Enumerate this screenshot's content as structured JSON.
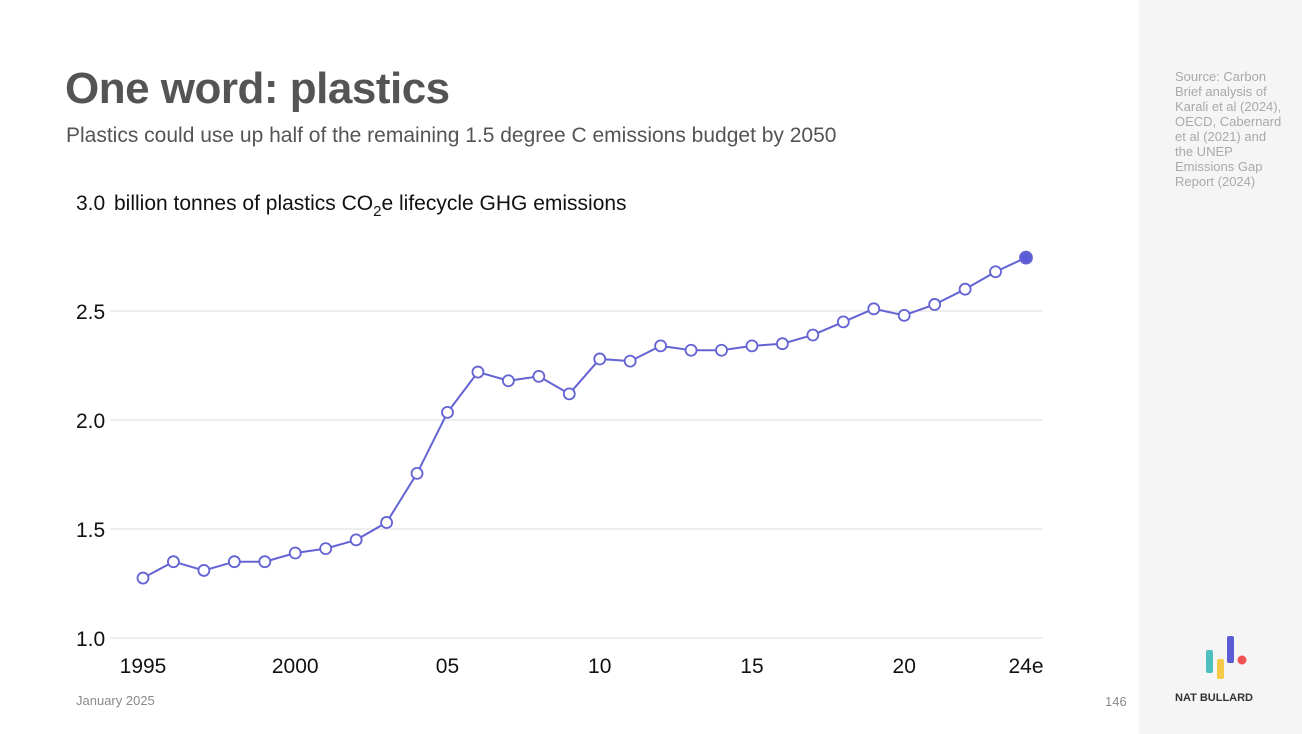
{
  "header": {
    "title": "One word: plastics",
    "subtitle": "Plastics could use up half of the remaining 1.5 degree C emissions budget by 2050"
  },
  "source": "Source: Carbon Brief analysis of Karali et al (2024), OECD, Cabernard et al (2021) and the UNEP Emissions Gap Report (2024)",
  "footer": {
    "date": "January 2025",
    "page": "146",
    "brand": "NAT BULLARD"
  },
  "colors": {
    "line": "#6463d4",
    "highlight": "#5b5bd6",
    "grid": "#dddddd",
    "logo": [
      "#4dbfbf",
      "#f7c948",
      "#5b5bd6",
      "#f05454"
    ]
  },
  "chart_data": {
    "type": "line",
    "title": "",
    "ylabel_parts": {
      "prefix": "billion tonnes of plastics CO",
      "sub": "2",
      "suffix": "e lifecycle GHG emissions"
    },
    "x": [
      1995,
      1996,
      1997,
      1998,
      1999,
      2000,
      2001,
      2002,
      2003,
      2004,
      2005,
      2006,
      2007,
      2008,
      2009,
      2010,
      2011,
      2012,
      2013,
      2014,
      2015,
      2016,
      2017,
      2018,
      2019,
      2020,
      2021,
      2022,
      2023,
      2024
    ],
    "values": [
      1.275,
      1.35,
      1.31,
      1.35,
      1.35,
      1.39,
      1.41,
      1.45,
      1.53,
      1.755,
      2.035,
      2.22,
      2.18,
      2.2,
      2.12,
      2.28,
      2.27,
      2.34,
      2.32,
      2.32,
      2.34,
      2.35,
      2.39,
      2.45,
      2.51,
      2.48,
      2.53,
      2.6,
      2.68,
      2.745
    ],
    "highlight_last": true,
    "xlim": [
      1995,
      2024
    ],
    "ylim": [
      1.0,
      3.0
    ],
    "xticks": [
      {
        "value": 1995,
        "label": "1995"
      },
      {
        "value": 2000,
        "label": "2000"
      },
      {
        "value": 2005,
        "label": "05"
      },
      {
        "value": 2010,
        "label": "10"
      },
      {
        "value": 2015,
        "label": "15"
      },
      {
        "value": 2020,
        "label": "20"
      },
      {
        "value": 2024,
        "label": "24e"
      }
    ],
    "yticks": [
      {
        "value": 1.0,
        "label": "1.0"
      },
      {
        "value": 1.5,
        "label": "1.5"
      },
      {
        "value": 2.0,
        "label": "2.0"
      },
      {
        "value": 2.5,
        "label": "2.5"
      },
      {
        "value": 3.0,
        "label": "3.0"
      }
    ],
    "grid": true
  }
}
